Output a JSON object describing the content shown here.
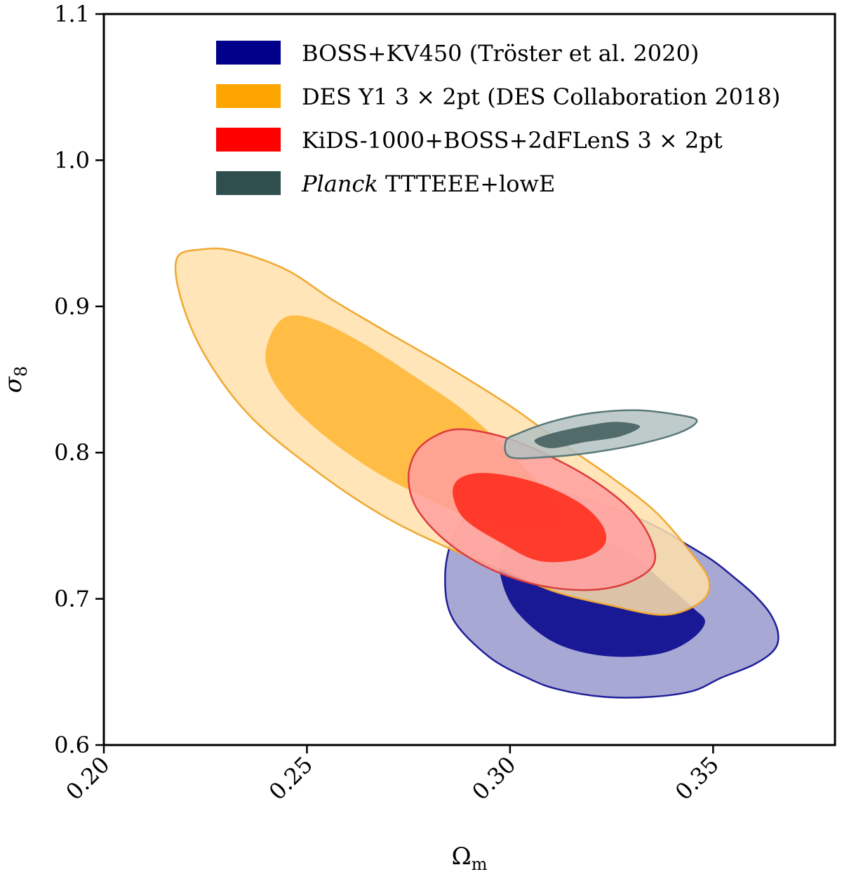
{
  "chart_data": {
    "type": "contour",
    "xlabel_main": "Ω",
    "xlabel_sub": "m",
    "ylabel_main": "σ",
    "ylabel_sub": "8",
    "xlim": [
      0.2,
      0.38
    ],
    "ylim": [
      0.6,
      1.1
    ],
    "xticks": [
      {
        "value": 0.2,
        "label": "0.20"
      },
      {
        "value": 0.25,
        "label": "0.25"
      },
      {
        "value": 0.3,
        "label": "0.30"
      },
      {
        "value": 0.35,
        "label": "0.35"
      }
    ],
    "yticks": [
      {
        "value": 0.6,
        "label": "0.6"
      },
      {
        "value": 0.7,
        "label": "0.7"
      },
      {
        "value": 0.8,
        "label": "0.8"
      },
      {
        "value": 0.9,
        "label": "0.9"
      },
      {
        "value": 1.0,
        "label": "1.0"
      },
      {
        "value": 1.1,
        "label": "1.1"
      }
    ],
    "legend_position": "top-right",
    "grid": false,
    "series": [
      {
        "id": "boss",
        "label": "BOSS+KV450 (Tröster et al. 2020)",
        "color": "#00008b",
        "outer_fill": "#9999cc",
        "inner_fill": "#00008b",
        "line": "#1f1f99",
        "outer": [
          [
            0.301,
            0.778
          ],
          [
            0.307,
            0.777
          ],
          [
            0.314,
            0.772
          ],
          [
            0.322,
            0.765
          ],
          [
            0.33,
            0.757
          ],
          [
            0.337,
            0.748
          ],
          [
            0.343,
            0.738
          ],
          [
            0.35,
            0.726
          ],
          [
            0.355,
            0.715
          ],
          [
            0.36,
            0.703
          ],
          [
            0.364,
            0.69
          ],
          [
            0.366,
            0.676
          ],
          [
            0.365,
            0.665
          ],
          [
            0.36,
            0.655
          ],
          [
            0.352,
            0.646
          ],
          [
            0.345,
            0.637
          ],
          [
            0.335,
            0.633
          ],
          [
            0.323,
            0.633
          ],
          [
            0.312,
            0.638
          ],
          [
            0.305,
            0.645
          ],
          [
            0.295,
            0.66
          ],
          [
            0.286,
            0.686
          ],
          [
            0.284,
            0.714
          ],
          [
            0.286,
            0.742
          ],
          [
            0.292,
            0.764
          ]
        ],
        "inner": [
          [
            0.307,
            0.752
          ],
          [
            0.315,
            0.748
          ],
          [
            0.323,
            0.74
          ],
          [
            0.331,
            0.728
          ],
          [
            0.338,
            0.711
          ],
          [
            0.345,
            0.694
          ],
          [
            0.348,
            0.684
          ],
          [
            0.344,
            0.671
          ],
          [
            0.336,
            0.662
          ],
          [
            0.323,
            0.661
          ],
          [
            0.311,
            0.67
          ],
          [
            0.302,
            0.69
          ],
          [
            0.298,
            0.712
          ],
          [
            0.298,
            0.734
          ]
        ]
      },
      {
        "id": "des",
        "label": "DES Y1 3 × 2pt (DES Collaboration 2018)",
        "color": "#ffa500",
        "outer_fill": "#ffe0aa",
        "inner_fill": "#ffb632",
        "line": "#f0a830",
        "outer": [
          [
            0.218,
            0.933
          ],
          [
            0.224,
            0.939
          ],
          [
            0.232,
            0.938
          ],
          [
            0.245,
            0.925
          ],
          [
            0.256,
            0.905
          ],
          [
            0.27,
            0.882
          ],
          [
            0.285,
            0.858
          ],
          [
            0.3,
            0.832
          ],
          [
            0.313,
            0.806
          ],
          [
            0.325,
            0.783
          ],
          [
            0.336,
            0.759
          ],
          [
            0.345,
            0.73
          ],
          [
            0.349,
            0.712
          ],
          [
            0.347,
            0.698
          ],
          [
            0.338,
            0.689
          ],
          [
            0.324,
            0.696
          ],
          [
            0.311,
            0.705
          ],
          [
            0.298,
            0.72
          ],
          [
            0.283,
            0.737
          ],
          [
            0.268,
            0.758
          ],
          [
            0.252,
            0.788
          ],
          [
            0.236,
            0.825
          ],
          [
            0.225,
            0.866
          ],
          [
            0.219,
            0.905
          ]
        ],
        "inner": [
          [
            0.241,
            0.88
          ],
          [
            0.245,
            0.893
          ],
          [
            0.252,
            0.891
          ],
          [
            0.263,
            0.876
          ],
          [
            0.276,
            0.853
          ],
          [
            0.289,
            0.828
          ],
          [
            0.3,
            0.8
          ],
          [
            0.309,
            0.773
          ],
          [
            0.313,
            0.756
          ],
          [
            0.307,
            0.745
          ],
          [
            0.293,
            0.752
          ],
          [
            0.281,
            0.767
          ],
          [
            0.268,
            0.785
          ],
          [
            0.255,
            0.81
          ],
          [
            0.245,
            0.836
          ],
          [
            0.24,
            0.86
          ]
        ]
      },
      {
        "id": "kids",
        "label": "KiDS-1000+BOSS+2dFLenS 3 × 2pt",
        "color": "#ff0000",
        "outer_fill": "#ffa0a0",
        "inner_fill": "#ff2818",
        "line": "#dc3c3c",
        "outer": [
          [
            0.288,
            0.816
          ],
          [
            0.298,
            0.811
          ],
          [
            0.308,
            0.8
          ],
          [
            0.32,
            0.782
          ],
          [
            0.33,
            0.76
          ],
          [
            0.335,
            0.738
          ],
          [
            0.335,
            0.722
          ],
          [
            0.328,
            0.71
          ],
          [
            0.318,
            0.706
          ],
          [
            0.306,
            0.71
          ],
          [
            0.294,
            0.722
          ],
          [
            0.284,
            0.74
          ],
          [
            0.277,
            0.762
          ],
          [
            0.275,
            0.783
          ],
          [
            0.277,
            0.801
          ],
          [
            0.282,
            0.812
          ]
        ],
        "inner": [
          [
            0.292,
            0.786
          ],
          [
            0.3,
            0.784
          ],
          [
            0.309,
            0.777
          ],
          [
            0.318,
            0.764
          ],
          [
            0.323,
            0.749
          ],
          [
            0.323,
            0.736
          ],
          [
            0.317,
            0.727
          ],
          [
            0.307,
            0.726
          ],
          [
            0.298,
            0.738
          ],
          [
            0.289,
            0.754
          ],
          [
            0.286,
            0.77
          ],
          [
            0.287,
            0.781
          ]
        ]
      },
      {
        "id": "planck",
        "label": "TTTEEE+lowE",
        "label_italic": "Planck",
        "color": "#2f4f4f",
        "outer_fill": "#b4c2c2",
        "inner_fill": "#3d5b5b",
        "line": "#5a7878",
        "outer": [
          [
            0.299,
            0.808
          ],
          [
            0.302,
            0.813
          ],
          [
            0.31,
            0.821
          ],
          [
            0.32,
            0.827
          ],
          [
            0.331,
            0.829
          ],
          [
            0.341,
            0.826
          ],
          [
            0.346,
            0.822
          ],
          [
            0.342,
            0.814
          ],
          [
            0.332,
            0.806
          ],
          [
            0.32,
            0.8
          ],
          [
            0.309,
            0.797
          ],
          [
            0.3,
            0.797
          ]
        ],
        "inner": [
          [
            0.306,
            0.808
          ],
          [
            0.31,
            0.813
          ],
          [
            0.318,
            0.818
          ],
          [
            0.326,
            0.821
          ],
          [
            0.332,
            0.818
          ],
          [
            0.327,
            0.811
          ],
          [
            0.318,
            0.807
          ],
          [
            0.31,
            0.803
          ]
        ]
      }
    ]
  }
}
